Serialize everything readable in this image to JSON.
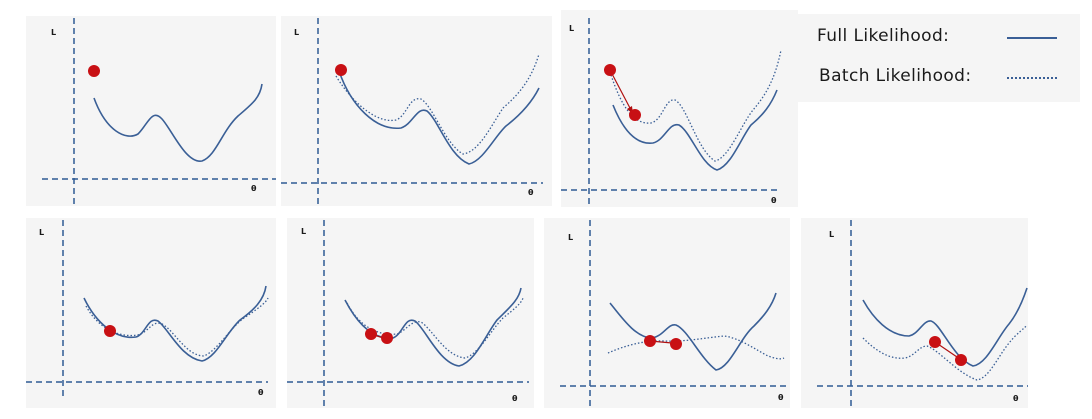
{
  "axis": {
    "y_label": "L",
    "x_label": "θ"
  },
  "legend": {
    "full_label": "Full Likelihood:",
    "batch_label": "Batch Likelihood:"
  },
  "colors": {
    "full_curve": "#3a5f96",
    "batch_curve": "#3a5f96",
    "axis": "#2f5b94",
    "point": "#c81014",
    "arrow": "#b01010",
    "panel_bg": "#f5f5f5"
  }
}
